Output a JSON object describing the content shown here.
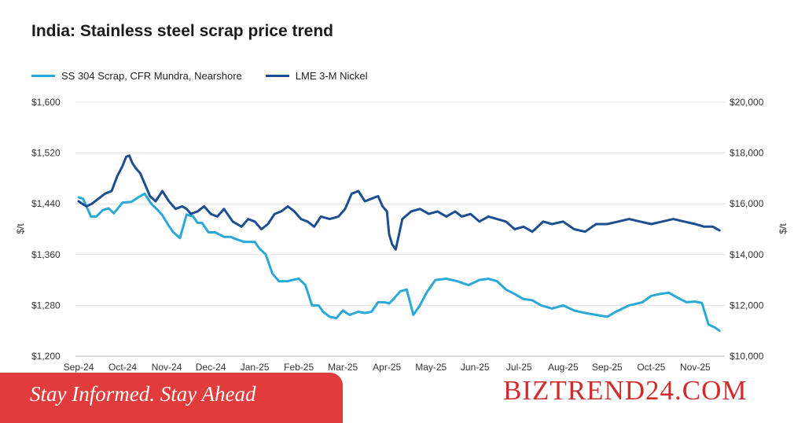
{
  "chart_data": {
    "type": "line",
    "title": "India: Stainless steel scrap price trend",
    "y_left_label": "$/t",
    "y_right_label": "$/t",
    "y_left_range": [
      1200,
      1600
    ],
    "y_right_range": [
      10000,
      20000
    ],
    "y_left_ticks": [
      "$1,600",
      "$1,520",
      "$1,440",
      "$1,360",
      "$1,280",
      "$1,200"
    ],
    "y_right_ticks": [
      "$20,000",
      "$18,000",
      "$16,000",
      "$14,000",
      "$12,000",
      "$10,000"
    ],
    "x_ticks": [
      "Sep-24",
      "Oct-24",
      "Nov-24",
      "Dec-24",
      "Jan-25",
      "Feb-25",
      "Mar-25",
      "Apr-25",
      "May-25",
      "Jun-25",
      "Jul-25",
      "Aug-25",
      "Sep-25",
      "Oct-25",
      "Nov-25"
    ],
    "x_range": [
      0,
      14.6
    ],
    "grid": true,
    "legend_position": "top-left",
    "series": [
      {
        "name": "SS 304 Scrap, CFR Mundra, Nearshore",
        "axis": "left",
        "color": "#2aa9d8",
        "x": [
          0,
          0.1,
          0.28,
          0.4,
          0.55,
          0.68,
          0.8,
          1.0,
          1.2,
          1.35,
          1.5,
          1.65,
          1.8,
          1.9,
          2.05,
          2.15,
          2.3,
          2.45,
          2.6,
          2.7,
          2.8,
          2.95,
          3.1,
          3.3,
          3.45,
          3.55,
          3.75,
          4.0,
          4.1,
          4.25,
          4.4,
          4.55,
          4.75,
          4.85,
          5.0,
          5.15,
          5.3,
          5.45,
          5.55,
          5.7,
          5.85,
          6.0,
          6.15,
          6.35,
          6.5,
          6.65,
          6.8,
          6.95,
          7.05,
          7.15,
          7.3,
          7.45,
          7.6,
          7.75,
          7.9,
          8.1,
          8.35,
          8.6,
          8.85,
          9.1,
          9.3,
          9.5,
          9.7,
          9.9,
          10.1,
          10.3,
          10.5,
          10.75,
          11.0,
          11.25,
          11.5,
          11.75,
          12.0,
          12.2,
          12.5,
          12.8,
          13.0,
          13.2,
          13.4,
          13.6,
          13.8,
          14.0,
          14.15,
          14.3,
          14.45,
          14.55
        ],
        "values": [
          1450,
          1448,
          1420,
          1420,
          1430,
          1433,
          1425,
          1442,
          1443,
          1450,
          1456,
          1440,
          1430,
          1422,
          1405,
          1395,
          1386,
          1423,
          1420,
          1410,
          1410,
          1395,
          1395,
          1388,
          1388,
          1385,
          1380,
          1380,
          1370,
          1360,
          1330,
          1318,
          1318,
          1320,
          1322,
          1312,
          1280,
          1280,
          1270,
          1262,
          1260,
          1272,
          1265,
          1270,
          1268,
          1270,
          1285,
          1285,
          1283,
          1290,
          1302,
          1305,
          1265,
          1280,
          1300,
          1320,
          1322,
          1318,
          1312,
          1320,
          1322,
          1318,
          1305,
          1298,
          1290,
          1288,
          1280,
          1275,
          1280,
          1272,
          1268,
          1265,
          1262,
          1270,
          1280,
          1285,
          1295,
          1298,
          1300,
          1292,
          1285,
          1286,
          1284,
          1250,
          1245,
          1240
        ]
      },
      {
        "name": "LME 3-M Nickel",
        "axis": "right",
        "color": "#1c4f91",
        "x": [
          0,
          0.08,
          0.18,
          0.3,
          0.45,
          0.6,
          0.75,
          0.88,
          1.0,
          1.08,
          1.15,
          1.22,
          1.3,
          1.4,
          1.5,
          1.62,
          1.75,
          1.9,
          2.05,
          2.2,
          2.35,
          2.45,
          2.55,
          2.7,
          2.85,
          3.0,
          3.15,
          3.3,
          3.5,
          3.7,
          3.85,
          4.0,
          4.15,
          4.3,
          4.45,
          4.6,
          4.75,
          4.9,
          5.05,
          5.2,
          5.35,
          5.5,
          5.7,
          5.9,
          6.05,
          6.2,
          6.35,
          6.5,
          6.65,
          6.8,
          6.9,
          7.0,
          7.05,
          7.12,
          7.2,
          7.35,
          7.55,
          7.75,
          7.95,
          8.15,
          8.35,
          8.55,
          8.7,
          8.9,
          9.1,
          9.3,
          9.5,
          9.7,
          9.9,
          10.1,
          10.3,
          10.55,
          10.75,
          11.0,
          11.25,
          11.5,
          11.75,
          12.0,
          12.25,
          12.5,
          12.75,
          13.0,
          13.25,
          13.5,
          13.75,
          14.0,
          14.2,
          14.4,
          14.55
        ],
        "values": [
          16100,
          16000,
          15900,
          16000,
          16200,
          16400,
          16500,
          17100,
          17500,
          17850,
          17900,
          17600,
          17400,
          17200,
          16800,
          16300,
          16100,
          16500,
          16100,
          15800,
          15900,
          15800,
          15600,
          15700,
          15900,
          15600,
          15500,
          15800,
          15300,
          15100,
          15400,
          15300,
          15000,
          15200,
          15600,
          15700,
          15900,
          15700,
          15400,
          15300,
          15100,
          15500,
          15400,
          15500,
          15800,
          16400,
          16500,
          16100,
          16200,
          16300,
          15900,
          15700,
          14800,
          14400,
          14200,
          15400,
          15700,
          15800,
          15600,
          15700,
          15500,
          15700,
          15500,
          15600,
          15300,
          15500,
          15400,
          15300,
          15000,
          15100,
          14900,
          15300,
          15200,
          15300,
          15000,
          14900,
          15200,
          15200,
          15300,
          15400,
          15300,
          15200,
          15300,
          15400,
          15300,
          15200,
          15100,
          15100,
          14950
        ]
      }
    ]
  },
  "footer": {
    "tagline": "Stay Informed. Stay Ahead",
    "brand": "BIZTREND24.COM"
  }
}
